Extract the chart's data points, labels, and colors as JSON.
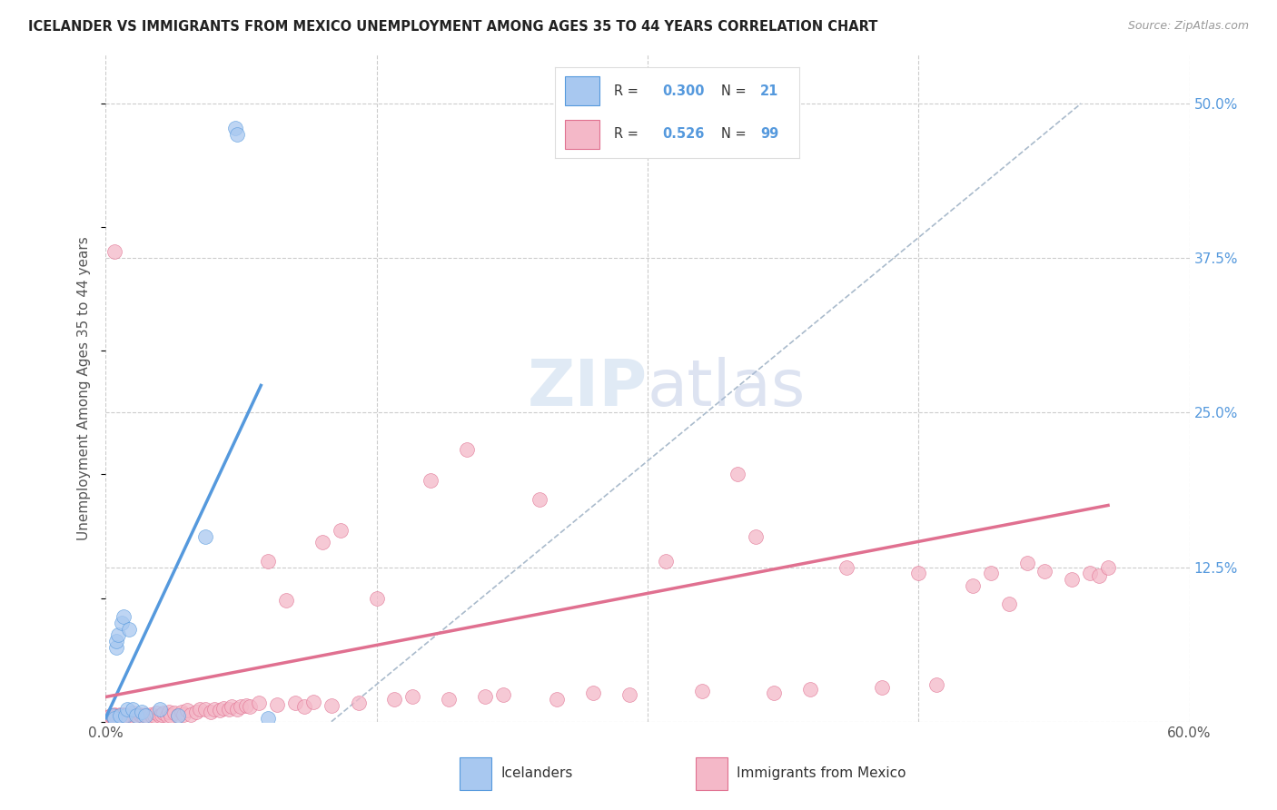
{
  "title": "ICELANDER VS IMMIGRANTS FROM MEXICO UNEMPLOYMENT AMONG AGES 35 TO 44 YEARS CORRELATION CHART",
  "source": "Source: ZipAtlas.com",
  "ylabel": "Unemployment Among Ages 35 to 44 years",
  "xlim": [
    0.0,
    0.6
  ],
  "ylim": [
    0.0,
    0.54
  ],
  "background_color": "#ffffff",
  "grid_color": "#cccccc",
  "blue_color": "#a8c8f0",
  "pink_color": "#f4b8c8",
  "blue_line_color": "#5599dd",
  "pink_line_color": "#e07090",
  "dashed_line_color": "#aabbcc",
  "icelander_label": "Icelanders",
  "mexico_label": "Immigrants from Mexico",
  "ice_x": [
    0.004,
    0.005,
    0.006,
    0.006,
    0.007,
    0.008,
    0.009,
    0.01,
    0.011,
    0.012,
    0.013,
    0.015,
    0.017,
    0.02,
    0.022,
    0.03,
    0.04,
    0.055,
    0.072,
    0.073,
    0.09
  ],
  "ice_y": [
    0.005,
    0.003,
    0.06,
    0.065,
    0.07,
    0.005,
    0.08,
    0.085,
    0.005,
    0.01,
    0.075,
    0.01,
    0.005,
    0.008,
    0.005,
    0.01,
    0.005,
    0.15,
    0.48,
    0.475,
    0.003
  ],
  "mex_x": [
    0.002,
    0.003,
    0.004,
    0.005,
    0.005,
    0.006,
    0.006,
    0.007,
    0.008,
    0.008,
    0.009,
    0.01,
    0.01,
    0.011,
    0.012,
    0.013,
    0.014,
    0.015,
    0.015,
    0.016,
    0.017,
    0.018,
    0.019,
    0.02,
    0.021,
    0.022,
    0.023,
    0.025,
    0.026,
    0.027,
    0.028,
    0.03,
    0.031,
    0.032,
    0.034,
    0.035,
    0.036,
    0.038,
    0.04,
    0.042,
    0.043,
    0.045,
    0.047,
    0.05,
    0.052,
    0.055,
    0.058,
    0.06,
    0.063,
    0.065,
    0.068,
    0.07,
    0.073,
    0.075,
    0.078,
    0.08,
    0.085,
    0.09,
    0.095,
    0.1,
    0.105,
    0.11,
    0.115,
    0.12,
    0.125,
    0.13,
    0.14,
    0.15,
    0.16,
    0.17,
    0.18,
    0.19,
    0.2,
    0.21,
    0.22,
    0.24,
    0.25,
    0.27,
    0.29,
    0.31,
    0.33,
    0.35,
    0.36,
    0.37,
    0.39,
    0.41,
    0.43,
    0.45,
    0.46,
    0.48,
    0.49,
    0.5,
    0.51,
    0.52,
    0.535,
    0.545,
    0.55,
    0.555,
    0.005,
    0.01
  ],
  "mex_y": [
    0.004,
    0.005,
    0.004,
    0.003,
    0.006,
    0.004,
    0.005,
    0.004,
    0.003,
    0.006,
    0.004,
    0.003,
    0.006,
    0.004,
    0.005,
    0.004,
    0.005,
    0.003,
    0.007,
    0.004,
    0.005,
    0.004,
    0.006,
    0.005,
    0.004,
    0.006,
    0.005,
    0.006,
    0.004,
    0.005,
    0.007,
    0.005,
    0.006,
    0.007,
    0.005,
    0.008,
    0.005,
    0.007,
    0.005,
    0.008,
    0.006,
    0.009,
    0.006,
    0.008,
    0.01,
    0.01,
    0.008,
    0.01,
    0.009,
    0.011,
    0.01,
    0.012,
    0.01,
    0.012,
    0.013,
    0.012,
    0.015,
    0.13,
    0.014,
    0.098,
    0.015,
    0.012,
    0.016,
    0.145,
    0.013,
    0.155,
    0.015,
    0.1,
    0.018,
    0.02,
    0.195,
    0.018,
    0.22,
    0.02,
    0.022,
    0.18,
    0.018,
    0.023,
    0.022,
    0.13,
    0.025,
    0.2,
    0.15,
    0.023,
    0.026,
    0.125,
    0.028,
    0.12,
    0.03,
    0.11,
    0.12,
    0.095,
    0.128,
    0.122,
    0.115,
    0.12,
    0.118,
    0.125,
    0.38,
    0.005
  ],
  "blue_line_x": [
    0.0,
    0.086
  ],
  "blue_line_y": [
    0.003,
    0.272
  ],
  "pink_line_x": [
    0.0,
    0.555
  ],
  "pink_line_y": [
    0.02,
    0.175
  ],
  "dash_line_x": [
    0.125,
    0.54
  ],
  "dash_line_y": [
    0.0,
    0.5
  ]
}
